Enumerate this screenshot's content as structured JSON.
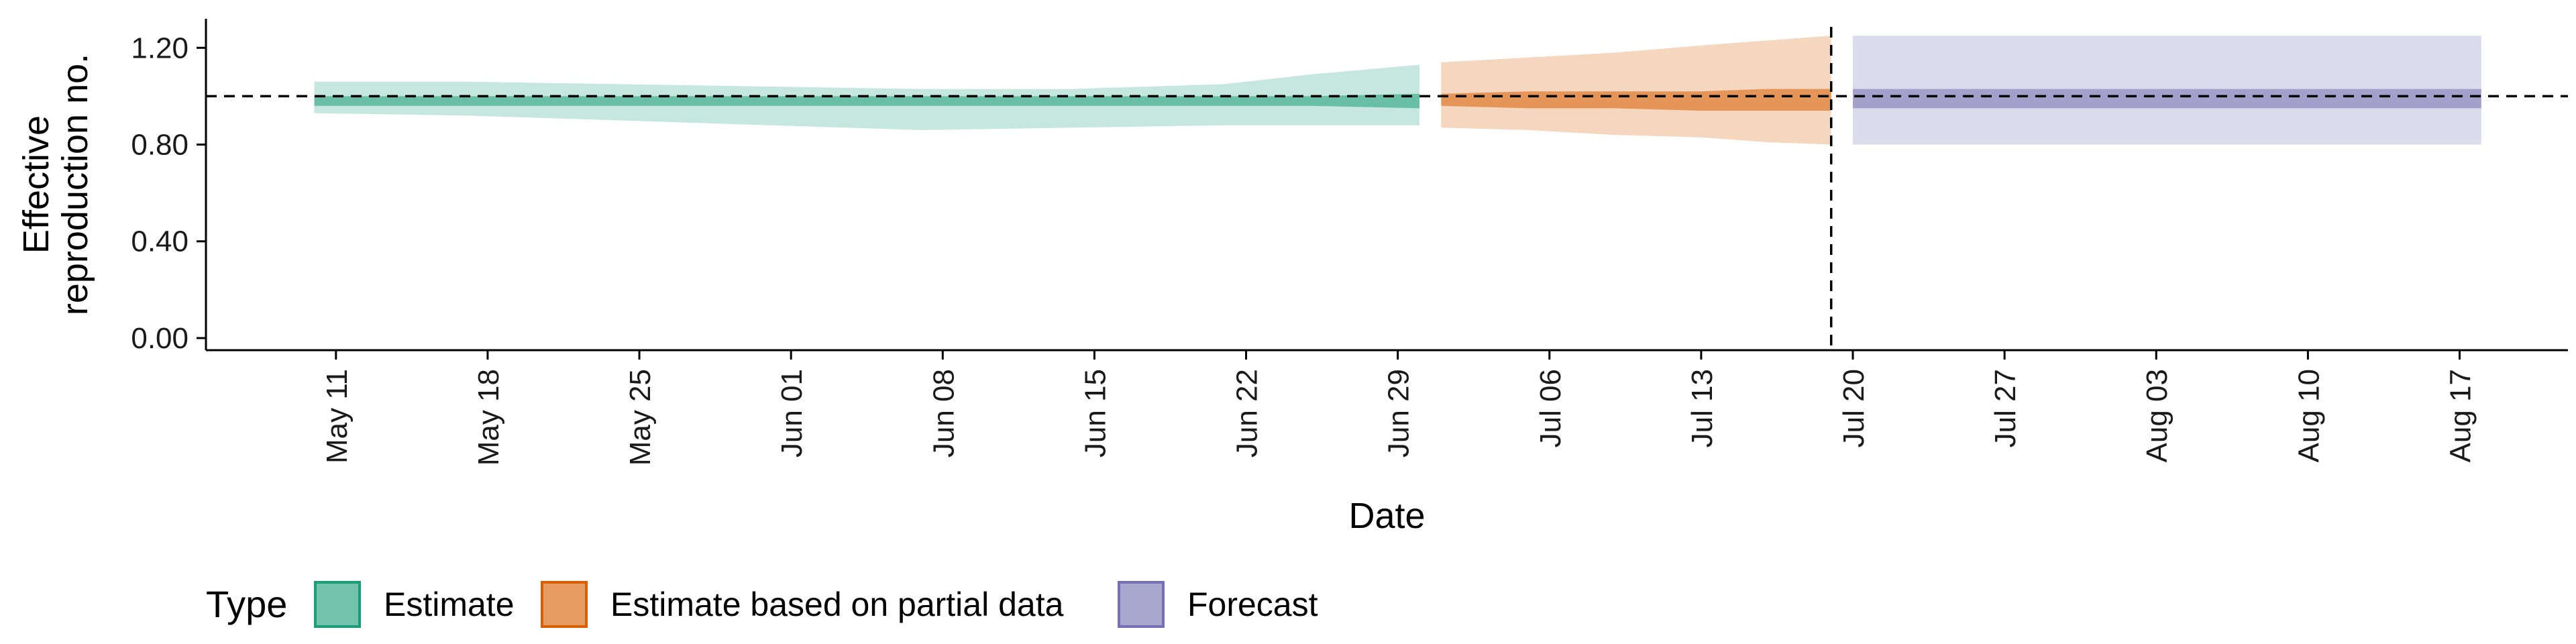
{
  "chart_data": {
    "type": "area",
    "xlabel": "Date",
    "ylabel_lines": [
      "Effective",
      "reproduction no."
    ],
    "y_ticks": [
      0.0,
      0.4,
      0.8,
      1.2
    ],
    "y_tick_labels": [
      "0.00",
      "0.40",
      "0.80",
      "1.20"
    ],
    "ylim": [
      -0.05,
      1.32
    ],
    "x_ticks": [
      "2020-05-11",
      "2020-05-18",
      "2020-05-25",
      "2020-06-01",
      "2020-06-08",
      "2020-06-15",
      "2020-06-22",
      "2020-06-29",
      "2020-07-06",
      "2020-07-13",
      "2020-07-20",
      "2020-07-27",
      "2020-08-03",
      "2020-08-10",
      "2020-08-17"
    ],
    "x_tick_labels": [
      "May 11",
      "May 18",
      "May 25",
      "Jun 01",
      "Jun 08",
      "Jun 15",
      "Jun 22",
      "Jun 29",
      "Jul 06",
      "Jul 13",
      "Jul 20",
      "Jul 27",
      "Aug 03",
      "Aug 10",
      "Aug 17"
    ],
    "xlim": [
      "2020-05-05",
      "2020-08-22"
    ],
    "reference_line_y": 1.0,
    "reference_line_x": "2020-07-19",
    "legend": {
      "title": "Type",
      "placement": "bottom-left",
      "items": [
        "Estimate",
        "Estimate based on partial data",
        "Forecast"
      ]
    },
    "series": [
      {
        "name": "Estimate",
        "color": "#1b9e77",
        "x": [
          "2020-05-10",
          "2020-05-17",
          "2020-05-24",
          "2020-05-31",
          "2020-06-07",
          "2020-06-14",
          "2020-06-21",
          "2020-06-25",
          "2020-06-30"
        ],
        "lower_90": [
          0.93,
          0.92,
          0.9,
          0.88,
          0.86,
          0.87,
          0.88,
          0.88,
          0.88
        ],
        "upper_90": [
          1.06,
          1.06,
          1.05,
          1.04,
          1.03,
          1.03,
          1.05,
          1.09,
          1.13
        ],
        "lower_50": [
          0.96,
          0.96,
          0.96,
          0.96,
          0.96,
          0.96,
          0.96,
          0.96,
          0.95
        ],
        "upper_50": [
          1.0,
          1.0,
          1.0,
          1.0,
          1.0,
          1.0,
          1.0,
          1.0,
          1.01
        ]
      },
      {
        "name": "Estimate based on partial data",
        "color": "#d95f02",
        "x": [
          "2020-07-01",
          "2020-07-05",
          "2020-07-09",
          "2020-07-13",
          "2020-07-16",
          "2020-07-19"
        ],
        "lower_90": [
          0.87,
          0.86,
          0.84,
          0.83,
          0.81,
          0.8
        ],
        "upper_90": [
          1.14,
          1.16,
          1.18,
          1.21,
          1.23,
          1.25
        ],
        "lower_50": [
          0.96,
          0.95,
          0.95,
          0.94,
          0.94,
          0.94
        ],
        "upper_50": [
          1.01,
          1.02,
          1.02,
          1.02,
          1.03,
          1.03
        ]
      },
      {
        "name": "Forecast",
        "color": "#7570b3",
        "x": [
          "2020-07-20",
          "2020-08-18"
        ],
        "lower_90": [
          0.8,
          0.8
        ],
        "upper_90": [
          1.25,
          1.25
        ],
        "lower_50": [
          0.95,
          0.95
        ],
        "upper_50": [
          1.03,
          1.03
        ]
      }
    ]
  }
}
